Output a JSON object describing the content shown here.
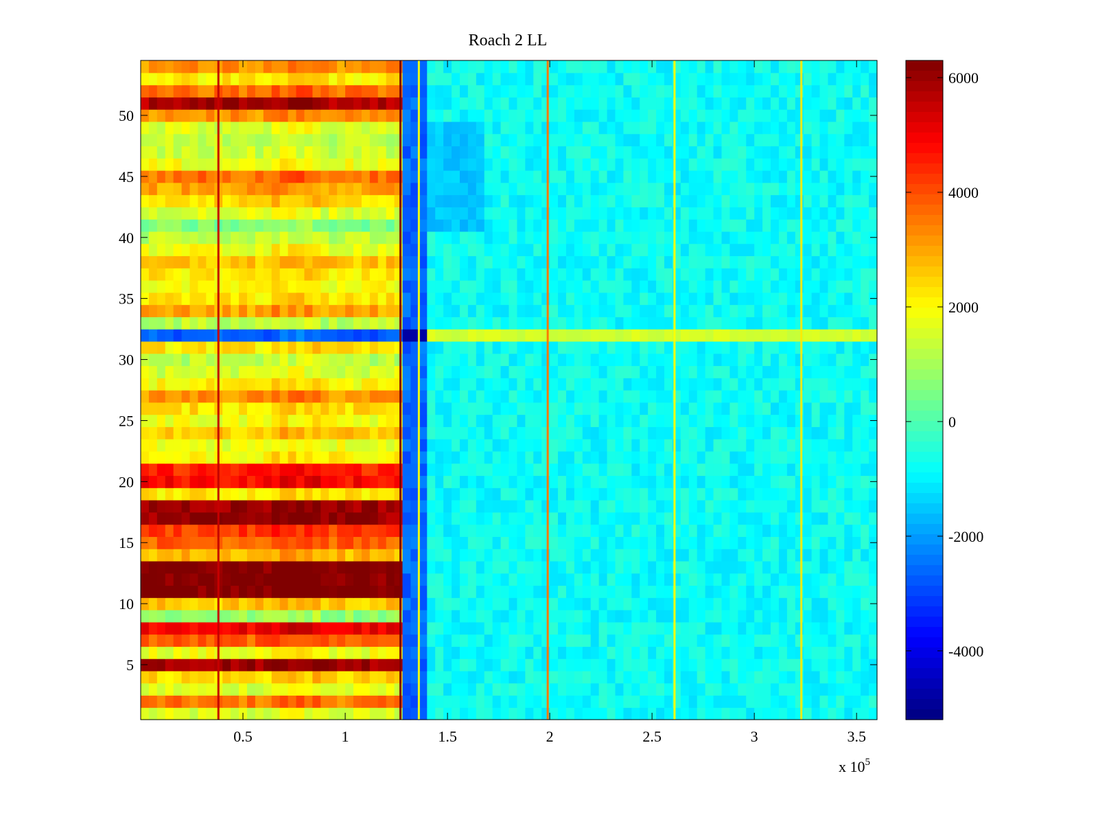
{
  "chart_data": {
    "type": "heatmap",
    "title": "Roach 2 LL",
    "xlabel": "",
    "ylabel": "",
    "x_range": [
      0,
      360000
    ],
    "y_range": [
      0.5,
      54.5
    ],
    "x_ticks": [
      50000,
      100000,
      150000,
      200000,
      250000,
      300000,
      350000
    ],
    "x_tick_labels": [
      "0.5",
      "1",
      "1.5",
      "2",
      "2.5",
      "3",
      "3.5"
    ],
    "x_multiplier_label": "x 10",
    "x_multiplier_exponent": "5",
    "y_ticks": [
      5,
      10,
      15,
      20,
      25,
      30,
      35,
      40,
      45,
      50
    ],
    "y_tick_labels": [
      "5",
      "10",
      "15",
      "20",
      "25",
      "30",
      "35",
      "40",
      "45",
      "50"
    ],
    "colorbar": {
      "range": [
        -5200,
        6300
      ],
      "ticks": [
        -4000,
        -2000,
        0,
        2000,
        4000,
        6000
      ],
      "tick_labels": [
        "-4000",
        "-2000",
        "0",
        "2000",
        "4000",
        "6000"
      ],
      "colormap": "jet"
    },
    "rows": 54,
    "transition_x": 128000,
    "left_region_row_values": [
      1500,
      3500,
      1600,
      2400,
      6000,
      1800,
      3800,
      5000,
      800,
      2600,
      6300,
      6300,
      6300,
      2800,
      3800,
      4200,
      6000,
      6000,
      2200,
      4800,
      4500,
      2000,
      1800,
      2600,
      1800,
      2300,
      3200,
      2000,
      1500,
      1200,
      2200,
      -2800,
      1200,
      3000,
      2200,
      1900,
      2200,
      2600,
      1800,
      1200,
      500,
      1600,
      2400,
      3000,
      3600,
      1800,
      1400,
      1300,
      1600,
      3200,
      5800,
      3600,
      2200,
      3200
    ],
    "right_region_base_value": -800,
    "row32_right_value": 1500,
    "vertical_lines": [
      {
        "x": 38000,
        "value": 5500
      },
      {
        "x": 127000,
        "value": 6300
      },
      {
        "x": 136000,
        "value": 1800
      },
      {
        "x": 199000,
        "value": 3500
      },
      {
        "x": 261000,
        "value": 2000
      },
      {
        "x": 323000,
        "value": 2200
      }
    ]
  }
}
